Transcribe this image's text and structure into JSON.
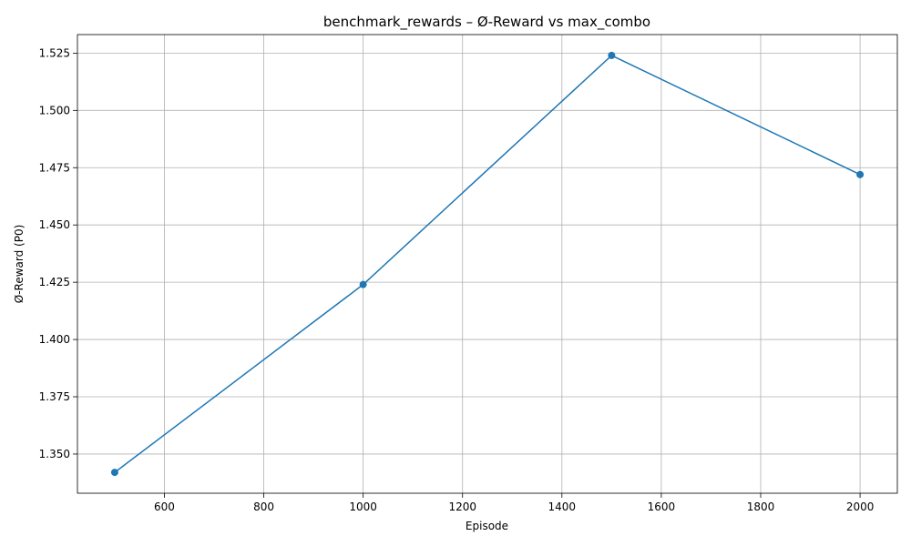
{
  "chart_data": {
    "type": "line",
    "title": "benchmark_rewards – Ø-Reward vs max_combo",
    "xlabel": "Episode",
    "ylabel": "Ø-Reward (P0)",
    "x": [
      500,
      1000,
      1500,
      2000
    ],
    "series": [
      {
        "values": [
          1.342,
          1.424,
          1.524,
          1.472
        ],
        "color": "#1f77b4",
        "marker": "circle"
      }
    ],
    "xlim": [
      425,
      2075
    ],
    "ylim": [
      1.3329,
      1.5331
    ],
    "xticks": [
      "600",
      "800",
      "1000",
      "1200",
      "1400",
      "1600",
      "1800",
      "2000"
    ],
    "yticks": [
      "1.350",
      "1.375",
      "1.400",
      "1.425",
      "1.450",
      "1.475",
      "1.500",
      "1.525"
    ],
    "grid": true,
    "grid_color": "#b0b0b0",
    "axis_color": "#000000"
  }
}
